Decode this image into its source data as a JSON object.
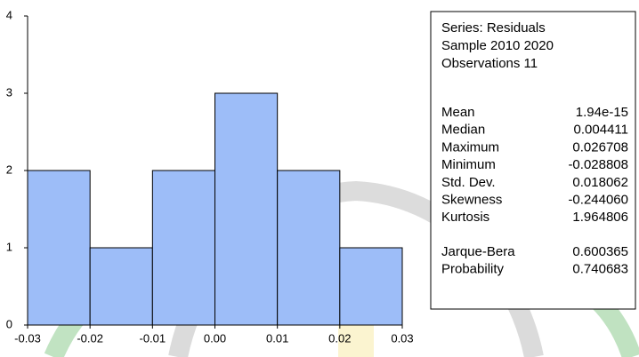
{
  "chart_data": {
    "type": "histogram",
    "bins": [
      -0.03,
      -0.02,
      -0.01,
      0,
      0.01,
      0.02,
      0.03
    ],
    "counts": [
      2,
      1,
      2,
      3,
      2,
      1
    ],
    "color": "#9dbdf8",
    "xlim": [
      -0.03,
      0.03
    ],
    "xticks": [
      -0.03,
      -0.02,
      -0.01,
      {
        "value": 0,
        "label": "0.00"
      },
      0.01,
      0.02,
      0.03
    ],
    "ylim": [
      0,
      4
    ],
    "yticks": [
      0,
      1,
      2,
      3,
      4
    ],
    "stats": {
      "lines": [
        "Series: Residuals",
        "Sample 2010 2020",
        "Observations 11"
      ],
      "rows": [
        [
          "Mean",
          "1.94e-15"
        ],
        [
          "Median",
          "0.004411"
        ],
        [
          "Maximum",
          "0.026708"
        ],
        [
          "Minimum",
          "-0.028808"
        ],
        [
          "Std. Dev.",
          "0.018062"
        ],
        [
          "Skewness",
          "-0.244060"
        ],
        [
          "Kurtosis",
          "1.964806"
        ]
      ],
      "tests": [
        [
          "Jarque-Bera",
          "0.600365"
        ],
        [
          "Probability",
          "0.740683"
        ]
      ]
    }
  }
}
